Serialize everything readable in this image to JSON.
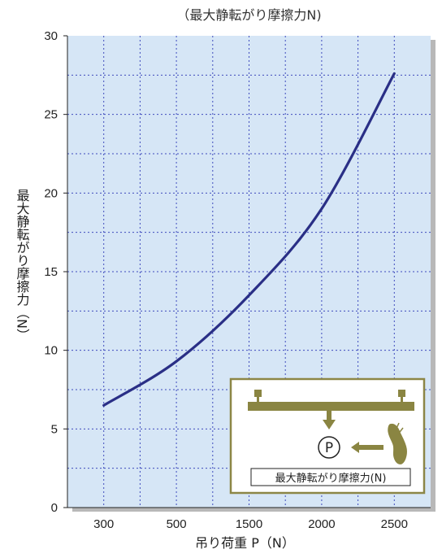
{
  "chart_data": {
    "type": "line",
    "title": "（最大静転がり摩擦力N)",
    "ylabel": "最大静転がり摩擦力（N）",
    "xlabel": "吊り荷重 P（N）",
    "x_tick_labels": [
      "300",
      "500",
      "1500",
      "2000",
      "2500"
    ],
    "y_ticks": [
      0,
      5,
      10,
      15,
      20,
      25,
      30
    ],
    "ylim": [
      0,
      30
    ],
    "grid": true,
    "series": [
      {
        "color": "#2a2f86",
        "points": [
          {
            "x": "300",
            "y": 6.5
          },
          {
            "x": "500",
            "y": 9.3
          },
          {
            "x": "1500",
            "y": 13.5
          },
          {
            "x": "2000",
            "y": 19.0
          },
          {
            "x": "2500",
            "y": 27.6
          }
        ]
      }
    ],
    "inset": {
      "marker_label": "P",
      "caption": "最大静転がり摩擦力(N)"
    }
  },
  "colors": {
    "plot_bg": "#d6e6f6",
    "grid": "#3f4bbd",
    "curve": "#2a2f86",
    "shadow": "#b8b8b8",
    "inset_bg": "#ffffff",
    "inset_border": "#8c8646",
    "inset_olive": "#8a8542",
    "axis": "#222222"
  }
}
